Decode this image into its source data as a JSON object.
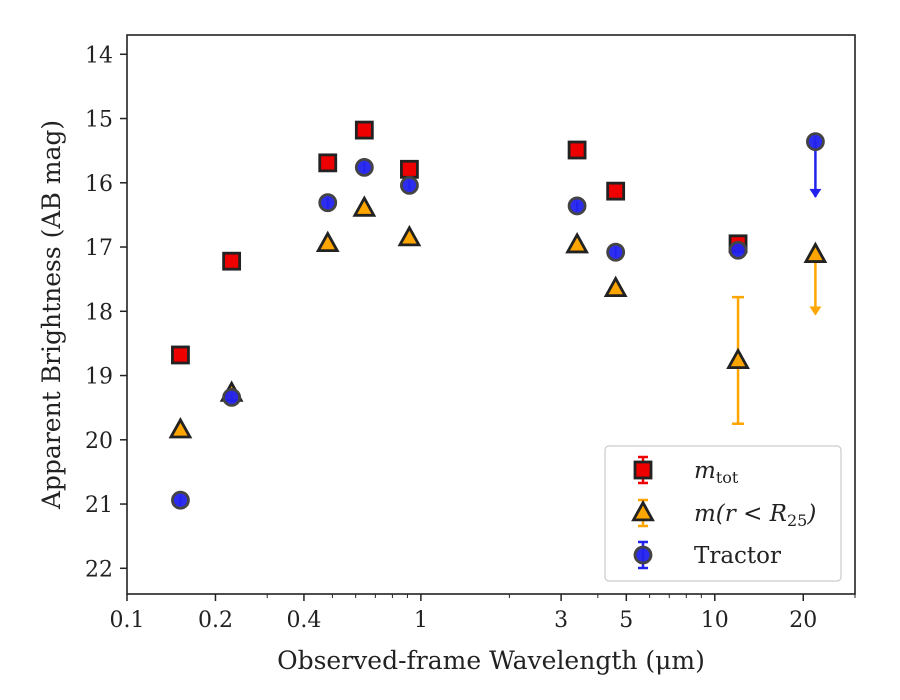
{
  "chart_data": {
    "type": "scatter",
    "xlabel": "Observed-frame Wavelength (μm)",
    "ylabel": "Apparent Brightness (AB mag)",
    "xscale": "log",
    "xlim": [
      0.1,
      30
    ],
    "ylim": [
      22.4,
      13.7
    ],
    "y_inverted": true,
    "grid": false,
    "legend_position": "lower-right",
    "xticks": [
      {
        "value": 0.1,
        "label": "0.1"
      },
      {
        "value": 0.2,
        "label": "0.2"
      },
      {
        "value": 0.4,
        "label": "0.4"
      },
      {
        "value": 1,
        "label": "1"
      },
      {
        "value": 3,
        "label": "3"
      },
      {
        "value": 5,
        "label": "5"
      },
      {
        "value": 10,
        "label": "10"
      },
      {
        "value": 20,
        "label": "20"
      }
    ],
    "yticks": [
      14,
      15,
      16,
      17,
      18,
      19,
      20,
      21,
      22
    ],
    "series": [
      {
        "name": "m_tot",
        "marker": "square",
        "color": "#ee0000",
        "edge_color": "#222222",
        "points": [
          {
            "x": 0.152,
            "y": 18.68
          },
          {
            "x": 0.227,
            "y": 17.22
          },
          {
            "x": 0.482,
            "y": 15.69
          },
          {
            "x": 0.642,
            "y": 15.18
          },
          {
            "x": 0.914,
            "y": 15.79
          },
          {
            "x": 3.4,
            "y": 15.49
          },
          {
            "x": 4.6,
            "y": 16.13
          },
          {
            "x": 12.0,
            "y": 16.95
          }
        ]
      },
      {
        "name": "m(r < R25)",
        "marker": "triangle",
        "color": "#ffa500",
        "edge_color": "#222222",
        "points": [
          {
            "x": 0.152,
            "y": 19.85
          },
          {
            "x": 0.227,
            "y": 19.28
          },
          {
            "x": 0.482,
            "y": 16.95
          },
          {
            "x": 0.642,
            "y": 16.4
          },
          {
            "x": 0.914,
            "y": 16.86
          },
          {
            "x": 3.4,
            "y": 16.97
          },
          {
            "x": 4.6,
            "y": 17.65
          },
          {
            "x": 12.0,
            "y": 18.77,
            "err_low": 17.78,
            "err_high": 19.75
          },
          {
            "x": 22.0,
            "y": 17.12,
            "upper_limit_to": 18.05
          }
        ]
      },
      {
        "name": "Tractor",
        "marker": "circle",
        "color": "#2222ee",
        "edge_color": "#444444",
        "points": [
          {
            "x": 0.152,
            "y": 20.94
          },
          {
            "x": 0.227,
            "y": 19.34
          },
          {
            "x": 0.482,
            "y": 16.31
          },
          {
            "x": 0.642,
            "y": 15.76
          },
          {
            "x": 0.914,
            "y": 16.04
          },
          {
            "x": 3.4,
            "y": 16.36
          },
          {
            "x": 4.6,
            "y": 17.08
          },
          {
            "x": 12.0,
            "y": 17.05
          },
          {
            "x": 22.0,
            "y": 15.36,
            "upper_limit_to": 16.22
          }
        ]
      }
    ]
  },
  "legend": {
    "entries": [
      {
        "series": "m_tot",
        "label_main": "m",
        "label_sub": "tot",
        "label_tail": ""
      },
      {
        "series": "m(r < R25)",
        "label_main": "m(r < R",
        "label_sub": "25",
        "label_tail": ")"
      },
      {
        "series": "Tractor",
        "label_main": "Tractor",
        "label_sub": "",
        "label_tail": ""
      }
    ]
  }
}
